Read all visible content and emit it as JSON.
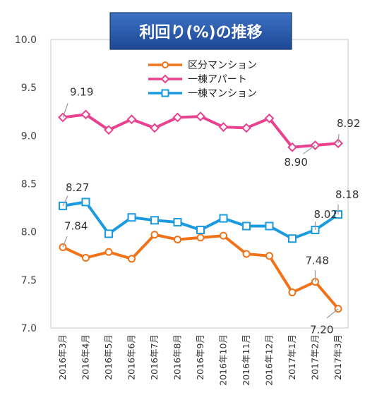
{
  "chart_data": {
    "type": "line",
    "title": "利回り(%)の推移",
    "categories": [
      "2016年3月",
      "2016年4月",
      "2016年5月",
      "2016年6月",
      "2016年7月",
      "2016年8月",
      "2016年9月",
      "2016年10月",
      "2016年11月",
      "2016年12月",
      "2017年1月",
      "2017年2月",
      "2017年3月"
    ],
    "ylim": [
      7.0,
      10.0
    ],
    "yticks": [
      "7.0",
      "7.5",
      "8.0",
      "8.5",
      "9.0",
      "9.5",
      "10.0"
    ],
    "grid": false,
    "legend_position": "top-center",
    "series": [
      {
        "name": "区分マンション",
        "color": "#f0731a",
        "marker": "circle",
        "values": [
          7.84,
          7.73,
          7.79,
          7.72,
          7.97,
          7.92,
          7.94,
          7.96,
          7.77,
          7.75,
          7.37,
          7.48,
          7.2
        ]
      },
      {
        "name": "一棟アパート",
        "color": "#e8418f",
        "marker": "diamond",
        "values": [
          9.19,
          9.22,
          9.06,
          9.17,
          9.08,
          9.19,
          9.2,
          9.09,
          9.08,
          9.18,
          8.88,
          8.9,
          8.92
        ]
      },
      {
        "name": "一棟マンション",
        "color": "#1a9be0",
        "marker": "square",
        "values": [
          8.27,
          8.31,
          7.98,
          8.15,
          8.12,
          8.1,
          8.02,
          8.14,
          8.06,
          8.06,
          7.93,
          8.02,
          8.18
        ]
      }
    ],
    "annotations": [
      {
        "series": 0,
        "index": 0,
        "text": "7.84"
      },
      {
        "series": 0,
        "index": 11,
        "text": "7.48"
      },
      {
        "series": 0,
        "index": 12,
        "text": "7.20"
      },
      {
        "series": 1,
        "index": 0,
        "text": "9.19"
      },
      {
        "series": 1,
        "index": 11,
        "text": "8.90"
      },
      {
        "series": 1,
        "index": 12,
        "text": "8.92"
      },
      {
        "series": 2,
        "index": 0,
        "text": "8.27"
      },
      {
        "series": 2,
        "index": 11,
        "text": "8.02"
      },
      {
        "series": 2,
        "index": 12,
        "text": "8.18"
      }
    ]
  }
}
